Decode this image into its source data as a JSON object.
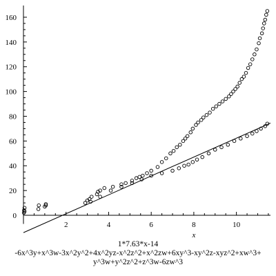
{
  "chart_data": {
    "type": "scatter",
    "title": "",
    "xlabel": "x",
    "ylabel": "",
    "xlim": [
      0,
      11.6
    ],
    "ylim": [
      -7,
      165
    ],
    "x_ticks": [
      2,
      4,
      6,
      8,
      10
    ],
    "y_ticks": [
      0,
      20,
      40,
      60,
      80,
      100,
      120,
      140,
      160
    ],
    "grid": false,
    "legend": "none",
    "caption_lines": [
      "1*7.63*x-14",
      "-6x^3y+x^3w-3x^2y^2+4x^2yz-x^2z^2+x^2zw+6xy^3-xy^2z-xyz^2+xw^3+",
      "y^3w+y^2z^2+z^3w-6zw^3"
    ],
    "fit_line": {
      "name": "1*7.63*x-14",
      "slope": 7.63,
      "intercept": -14,
      "x_range": [
        0,
        11.6
      ]
    },
    "series": [
      {
        "marker": "circle",
        "x": [
          0.02,
          0.03,
          0.05,
          0.7,
          0.72,
          1.0,
          1.05,
          2.9,
          3.0,
          3.1,
          3.2,
          3.45,
          3.5,
          3.6,
          3.8,
          4.2,
          4.6,
          4.8,
          5.1,
          5.3,
          5.45,
          5.6,
          5.8,
          6.0,
          6.3,
          6.5,
          6.7,
          6.9,
          7.05,
          7.2,
          7.35,
          7.5,
          7.6,
          7.7,
          7.85,
          7.95,
          8.1,
          8.2,
          8.35,
          8.45,
          8.6,
          8.75,
          8.9,
          9.05,
          9.2,
          9.35,
          9.5,
          9.65,
          9.75,
          9.85,
          9.95,
          10.05,
          10.15,
          10.25,
          10.35,
          10.45,
          10.55,
          10.65,
          10.75,
          10.85,
          10.95,
          11.05,
          11.1,
          11.2,
          11.25,
          11.3,
          11.35,
          11.4,
          11.45
        ],
        "y": [
          2,
          4,
          6,
          5,
          8,
          7,
          9,
          10,
          12,
          13,
          15,
          17,
          19,
          20,
          22,
          23,
          25,
          26,
          28,
          30,
          31,
          32,
          34,
          36,
          39,
          43,
          46,
          50,
          52,
          55,
          57,
          60,
          62,
          64,
          67,
          70,
          73,
          75,
          77,
          79,
          81,
          83,
          86,
          88,
          90,
          92,
          94,
          96,
          98,
          100,
          102,
          104,
          107,
          110,
          112,
          115,
          119,
          122,
          126,
          130,
          134,
          139,
          143,
          147,
          151,
          155,
          158,
          162,
          165
        ]
      },
      {
        "marker": "circle",
        "x": [
          0.05,
          1.05,
          3.15,
          3.6,
          4.1,
          4.6,
          5.1,
          5.55,
          6.0,
          6.5,
          7.0,
          7.3,
          7.55,
          7.75,
          7.95,
          8.15,
          8.4,
          8.7,
          9.0,
          9.3,
          9.6,
          9.9,
          10.2,
          10.5,
          10.75,
          10.95,
          11.15,
          11.35,
          11.45
        ],
        "y": [
          3,
          8,
          11,
          15,
          20,
          23,
          26,
          29,
          32,
          34,
          36,
          38,
          40,
          41,
          43,
          45,
          47,
          50,
          53,
          55,
          57,
          60,
          62,
          64,
          66,
          68,
          70,
          72,
          74
        ]
      }
    ]
  }
}
